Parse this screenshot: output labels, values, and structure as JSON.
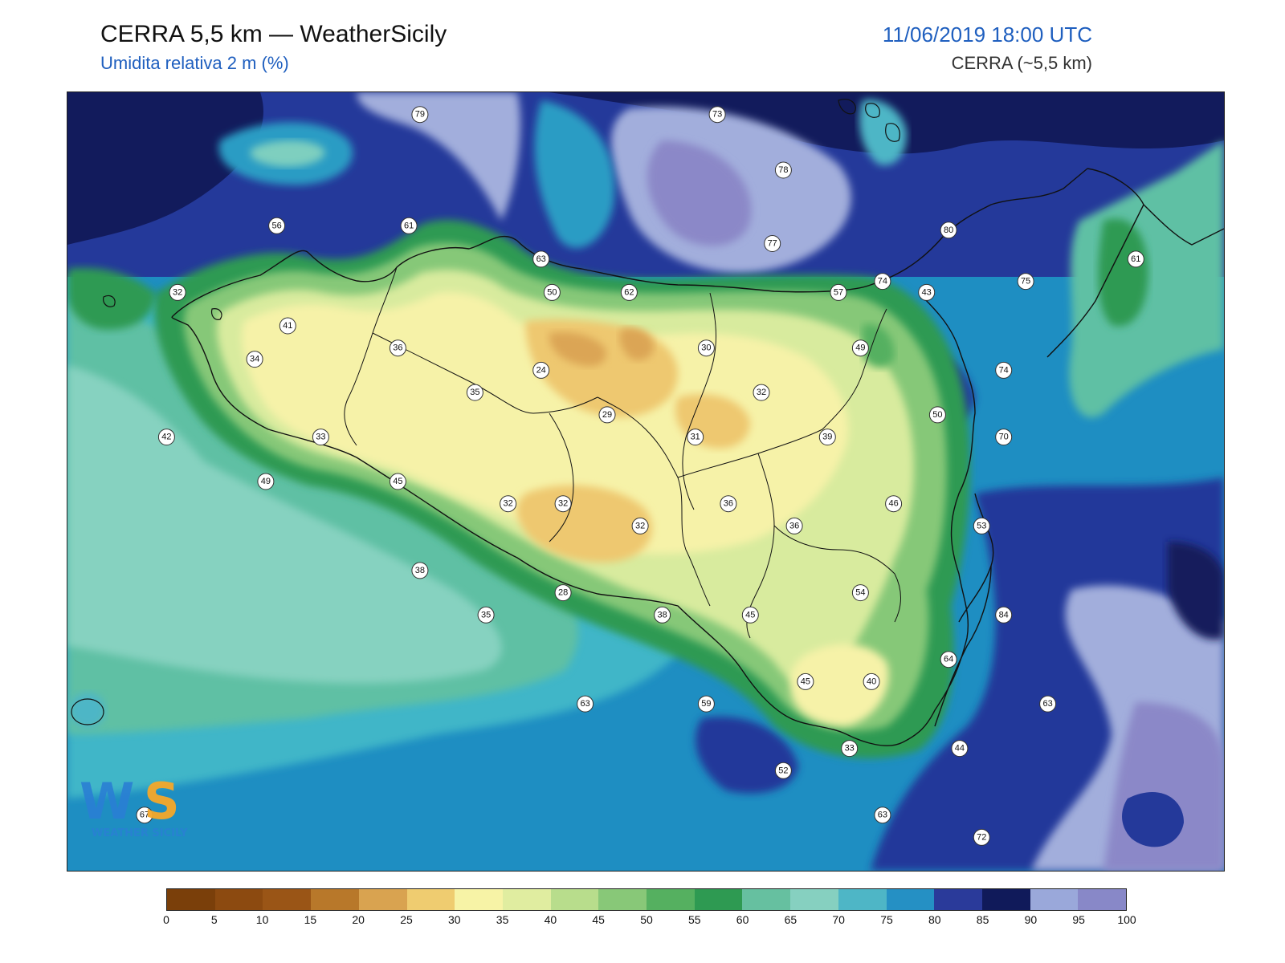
{
  "header": {
    "title": "CERRA 5,5 km — WeatherSicily",
    "subtitle": "Umidita relativa 2 m (%)",
    "datetime": "11/06/2019 18:00 UTC",
    "model": "CERRA (~5,5 km)"
  },
  "map": {
    "variable": "relative humidity 2 m",
    "stations": [
      {
        "value": "79",
        "lon": 13.2,
        "lat": 38.7
      },
      {
        "value": "73",
        "lon": 14.55,
        "lat": 38.7
      },
      {
        "value": "78",
        "lon": 14.85,
        "lat": 38.45
      },
      {
        "value": "80",
        "lon": 15.6,
        "lat": 38.18
      },
      {
        "value": "61",
        "lon": 16.45,
        "lat": 38.05
      },
      {
        "value": "56",
        "lon": 12.55,
        "lat": 38.2
      },
      {
        "value": "61",
        "lon": 13.15,
        "lat": 38.2
      },
      {
        "value": "63",
        "lon": 13.75,
        "lat": 38.05
      },
      {
        "value": "77",
        "lon": 14.8,
        "lat": 38.12
      },
      {
        "value": "74",
        "lon": 15.3,
        "lat": 37.95
      },
      {
        "value": "75",
        "lon": 15.95,
        "lat": 37.95
      },
      {
        "value": "32",
        "lon": 12.1,
        "lat": 37.9
      },
      {
        "value": "50",
        "lon": 13.8,
        "lat": 37.9
      },
      {
        "value": "62",
        "lon": 14.15,
        "lat": 37.9
      },
      {
        "value": "57",
        "lon": 15.1,
        "lat": 37.9
      },
      {
        "value": "43",
        "lon": 15.5,
        "lat": 37.9
      },
      {
        "value": "41",
        "lon": 12.6,
        "lat": 37.75
      },
      {
        "value": "36",
        "lon": 13.1,
        "lat": 37.65
      },
      {
        "value": "30",
        "lon": 14.5,
        "lat": 37.65
      },
      {
        "value": "49",
        "lon": 15.2,
        "lat": 37.65
      },
      {
        "value": "34",
        "lon": 12.45,
        "lat": 37.6
      },
      {
        "value": "24",
        "lon": 13.75,
        "lat": 37.55
      },
      {
        "value": "74",
        "lon": 15.85,
        "lat": 37.55
      },
      {
        "value": "35",
        "lon": 13.45,
        "lat": 37.45
      },
      {
        "value": "32",
        "lon": 14.75,
        "lat": 37.45
      },
      {
        "value": "29",
        "lon": 14.05,
        "lat": 37.35
      },
      {
        "value": "50",
        "lon": 15.55,
        "lat": 37.35
      },
      {
        "value": "42",
        "lon": 12.05,
        "lat": 37.25
      },
      {
        "value": "33",
        "lon": 12.75,
        "lat": 37.25
      },
      {
        "value": "31",
        "lon": 14.45,
        "lat": 37.25
      },
      {
        "value": "39",
        "lon": 15.05,
        "lat": 37.25
      },
      {
        "value": "70",
        "lon": 15.85,
        "lat": 37.25
      },
      {
        "value": "49",
        "lon": 12.5,
        "lat": 37.05
      },
      {
        "value": "45",
        "lon": 13.1,
        "lat": 37.05
      },
      {
        "value": "32",
        "lon": 13.6,
        "lat": 36.95
      },
      {
        "value": "32",
        "lon": 13.85,
        "lat": 36.95
      },
      {
        "value": "36",
        "lon": 14.6,
        "lat": 36.95
      },
      {
        "value": "46",
        "lon": 15.35,
        "lat": 36.95
      },
      {
        "value": "32",
        "lon": 14.2,
        "lat": 36.85
      },
      {
        "value": "36",
        "lon": 14.9,
        "lat": 36.85
      },
      {
        "value": "53",
        "lon": 15.75,
        "lat": 36.85
      },
      {
        "value": "38",
        "lon": 13.2,
        "lat": 36.65
      },
      {
        "value": "28",
        "lon": 13.85,
        "lat": 36.55
      },
      {
        "value": "54",
        "lon": 15.2,
        "lat": 36.55
      },
      {
        "value": "35",
        "lon": 13.5,
        "lat": 36.45
      },
      {
        "value": "38",
        "lon": 14.3,
        "lat": 36.45
      },
      {
        "value": "45",
        "lon": 14.7,
        "lat": 36.45
      },
      {
        "value": "84",
        "lon": 15.85,
        "lat": 36.45
      },
      {
        "value": "64",
        "lon": 15.6,
        "lat": 36.25
      },
      {
        "value": "45",
        "lon": 14.95,
        "lat": 36.15
      },
      {
        "value": "40",
        "lon": 15.25,
        "lat": 36.15
      },
      {
        "value": "63",
        "lon": 13.95,
        "lat": 36.05
      },
      {
        "value": "59",
        "lon": 14.5,
        "lat": 36.05
      },
      {
        "value": "63",
        "lon": 16.05,
        "lat": 36.05
      },
      {
        "value": "33",
        "lon": 15.15,
        "lat": 35.85
      },
      {
        "value": "44",
        "lon": 15.65,
        "lat": 35.85
      },
      {
        "value": "52",
        "lon": 14.85,
        "lat": 35.75
      },
      {
        "value": "67",
        "lon": 11.95,
        "lat": 35.55
      },
      {
        "value": "63",
        "lon": 15.3,
        "lat": 35.55
      },
      {
        "value": "72",
        "lon": 15.75,
        "lat": 35.45
      }
    ],
    "logo_text": "WS WEATHER SICILY"
  },
  "colorbar": {
    "ticks": [
      "0",
      "5",
      "10",
      "15",
      "20",
      "25",
      "30",
      "35",
      "40",
      "45",
      "50",
      "55",
      "60",
      "65",
      "70",
      "75",
      "80",
      "85",
      "90",
      "95",
      "100"
    ],
    "colors": [
      "#7a3f0a",
      "#8c4a10",
      "#9a5516",
      "#b8782a",
      "#d9a350",
      "#efcc70",
      "#f7f3a6",
      "#e0eda0",
      "#b8dd8c",
      "#88c878",
      "#55b060",
      "#2e9a52",
      "#66c0a0",
      "#86d0c0",
      "#4eb6c6",
      "#2590c4",
      "#2a3a9a",
      "#101a5a",
      "#9aa8da",
      "#8888c8"
    ]
  }
}
